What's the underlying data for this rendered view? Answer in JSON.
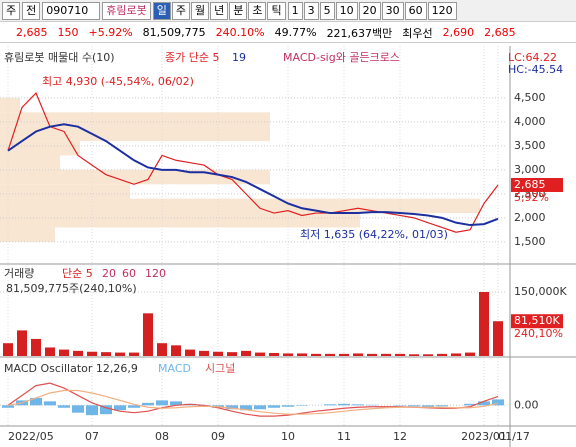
{
  "toolbar": {
    "market": "주",
    "prev": "전",
    "code": "090710",
    "name": "휴림로봇",
    "periods": [
      "일",
      "주",
      "월",
      "년",
      "분",
      "초",
      "틱"
    ],
    "numbers": [
      "1",
      "3",
      "5",
      "10",
      "20",
      "30",
      "60",
      "120"
    ]
  },
  "quote": {
    "price": "2,685",
    "change": "150",
    "change_pct": "+5.92%",
    "volume": "81,509,775",
    "volume_pct": "240.10%",
    "turnover": "49.77%",
    "amount": "221,637백만",
    "best": "최우선",
    "ask": "2,690",
    "bid": "2,685"
  },
  "chart_data": [
    {
      "type": "line",
      "legend": [
        "휴림로봇 매물대 수(10)",
        "종가 단순 5",
        "19",
        "MACD-sig와 골든크로스"
      ],
      "corner_labels": [
        "LC:64.22",
        "HC:-45.54"
      ],
      "annotations": [
        "최고 4,930 (-45,54%, 06/02)",
        "최저 1,635 (64,22%, 01/03)"
      ],
      "last_labels": [
        "2,685",
        "5,92%"
      ],
      "categories": [
        "2022/05",
        null,
        null,
        null,
        null,
        null,
        "07",
        null,
        null,
        null,
        null,
        "08",
        null,
        null,
        null,
        "09",
        null,
        null,
        null,
        null,
        "10",
        null,
        null,
        null,
        "11",
        null,
        null,
        null,
        "12",
        null,
        null,
        null,
        null,
        null,
        "2023/01",
        "01/17"
      ],
      "series": [
        {
          "name": "종가 단순 5",
          "color": "#e02020",
          "values": [
            3400,
            4300,
            4600,
            3900,
            3800,
            3300,
            3100,
            2900,
            2800,
            2700,
            2800,
            3300,
            3200,
            3150,
            3100,
            2900,
            2800,
            2500,
            2200,
            2100,
            2150,
            2050,
            2100,
            2100,
            2150,
            2200,
            2150,
            2100,
            2050,
            2000,
            1900,
            1800,
            1700,
            1750,
            2300,
            2685
          ]
        },
        {
          "name": "19",
          "color": "#1c2fa0",
          "values": [
            3400,
            3600,
            3800,
            3900,
            3950,
            3900,
            3750,
            3600,
            3400,
            3200,
            3050,
            3000,
            3000,
            2950,
            2950,
            2900,
            2850,
            2750,
            2600,
            2450,
            2300,
            2200,
            2150,
            2100,
            2100,
            2100,
            2120,
            2120,
            2100,
            2080,
            2050,
            2000,
            1900,
            1850,
            1870,
            1980
          ]
        }
      ],
      "profile": {
        "bins": [
          1500,
          1800,
          2100,
          2400,
          2700,
          3000,
          3300,
          3600,
          3900,
          4200,
          4500
        ],
        "values": [
          55,
          360,
          480,
          130,
          270,
          60,
          80,
          270,
          270,
          20
        ],
        "color": "#f8e6d2"
      },
      "ylim": [
        1080,
        5540
      ],
      "yticks": [
        {
          "value": 1500,
          "label": "1,500"
        },
        {
          "value": 2000,
          "label": "2,000"
        },
        {
          "value": 2500,
          "label": "2,500"
        },
        {
          "value": 3000,
          "label": "3,000"
        },
        {
          "value": 3500,
          "label": "3,500"
        },
        {
          "value": 4000,
          "label": "4,000"
        },
        {
          "value": 4500,
          "label": "4,500"
        }
      ],
      "grid": true
    },
    {
      "type": "bar",
      "legend": [
        "거래량",
        "단순 5",
        "20",
        "60",
        "120"
      ],
      "subtitle": "81,509,775주(240,10%)",
      "last_labels": [
        "81,510K",
        "240,10%"
      ],
      "series": [
        {
          "name": "거래량",
          "color": "#d42020",
          "values": [
            30000,
            60000,
            40000,
            20000,
            15000,
            12000,
            10000,
            9000,
            8000,
            8000,
            100000,
            30000,
            25000,
            15000,
            12000,
            10000,
            9000,
            12000,
            8000,
            7000,
            6000,
            6000,
            5000,
            5000,
            5000,
            6000,
            5000,
            5000,
            5000,
            4000,
            4000,
            5000,
            6000,
            8000,
            150000,
            81510
          ]
        }
      ],
      "ylim": [
        0,
        206250
      ],
      "yticks": [
        {
          "value": 150000,
          "label": "150,000K"
        }
      ]
    },
    {
      "type": "line",
      "legend": [
        "MACD Oscillator 12,26,9",
        "MACD",
        "시그널"
      ],
      "series": [
        {
          "name": "MACD Oscillator 12,26,9",
          "color": "#6fb6e8",
          "values": [
            -5,
            10,
            15,
            8,
            -5,
            -15,
            -20,
            -18,
            -10,
            -5,
            5,
            10,
            8,
            3,
            -2,
            -5,
            -8,
            -10,
            -8,
            -5,
            -3,
            -1,
            0,
            2,
            3,
            2,
            1,
            0,
            -1,
            -2,
            -3,
            -2,
            0,
            3,
            8,
            12
          ]
        },
        {
          "name": "MACD",
          "color": "#e05050",
          "values": [
            0,
            20,
            40,
            45,
            35,
            20,
            5,
            -5,
            -12,
            -15,
            -12,
            -5,
            0,
            2,
            0,
            -5,
            -12,
            -18,
            -22,
            -22,
            -20,
            -16,
            -12,
            -9,
            -6,
            -4,
            -3,
            -3,
            -3,
            -4,
            -5,
            -6,
            -6,
            -3,
            8,
            18
          ]
        },
        {
          "name": "시그널",
          "color": "#f0b080",
          "values": [
            0,
            5,
            15,
            25,
            30,
            30,
            25,
            18,
            10,
            2,
            -4,
            -6,
            -5,
            -3,
            -2,
            -3,
            -6,
            -9,
            -13,
            -16,
            -18,
            -18,
            -17,
            -15,
            -12,
            -9,
            -7,
            -5,
            -4,
            -4,
            -4,
            -4,
            -5,
            -5,
            -2,
            4
          ]
        }
      ],
      "ylim": [
        -40,
        92
      ],
      "yticks": [
        {
          "value": 0,
          "label": "0.00"
        }
      ]
    }
  ]
}
